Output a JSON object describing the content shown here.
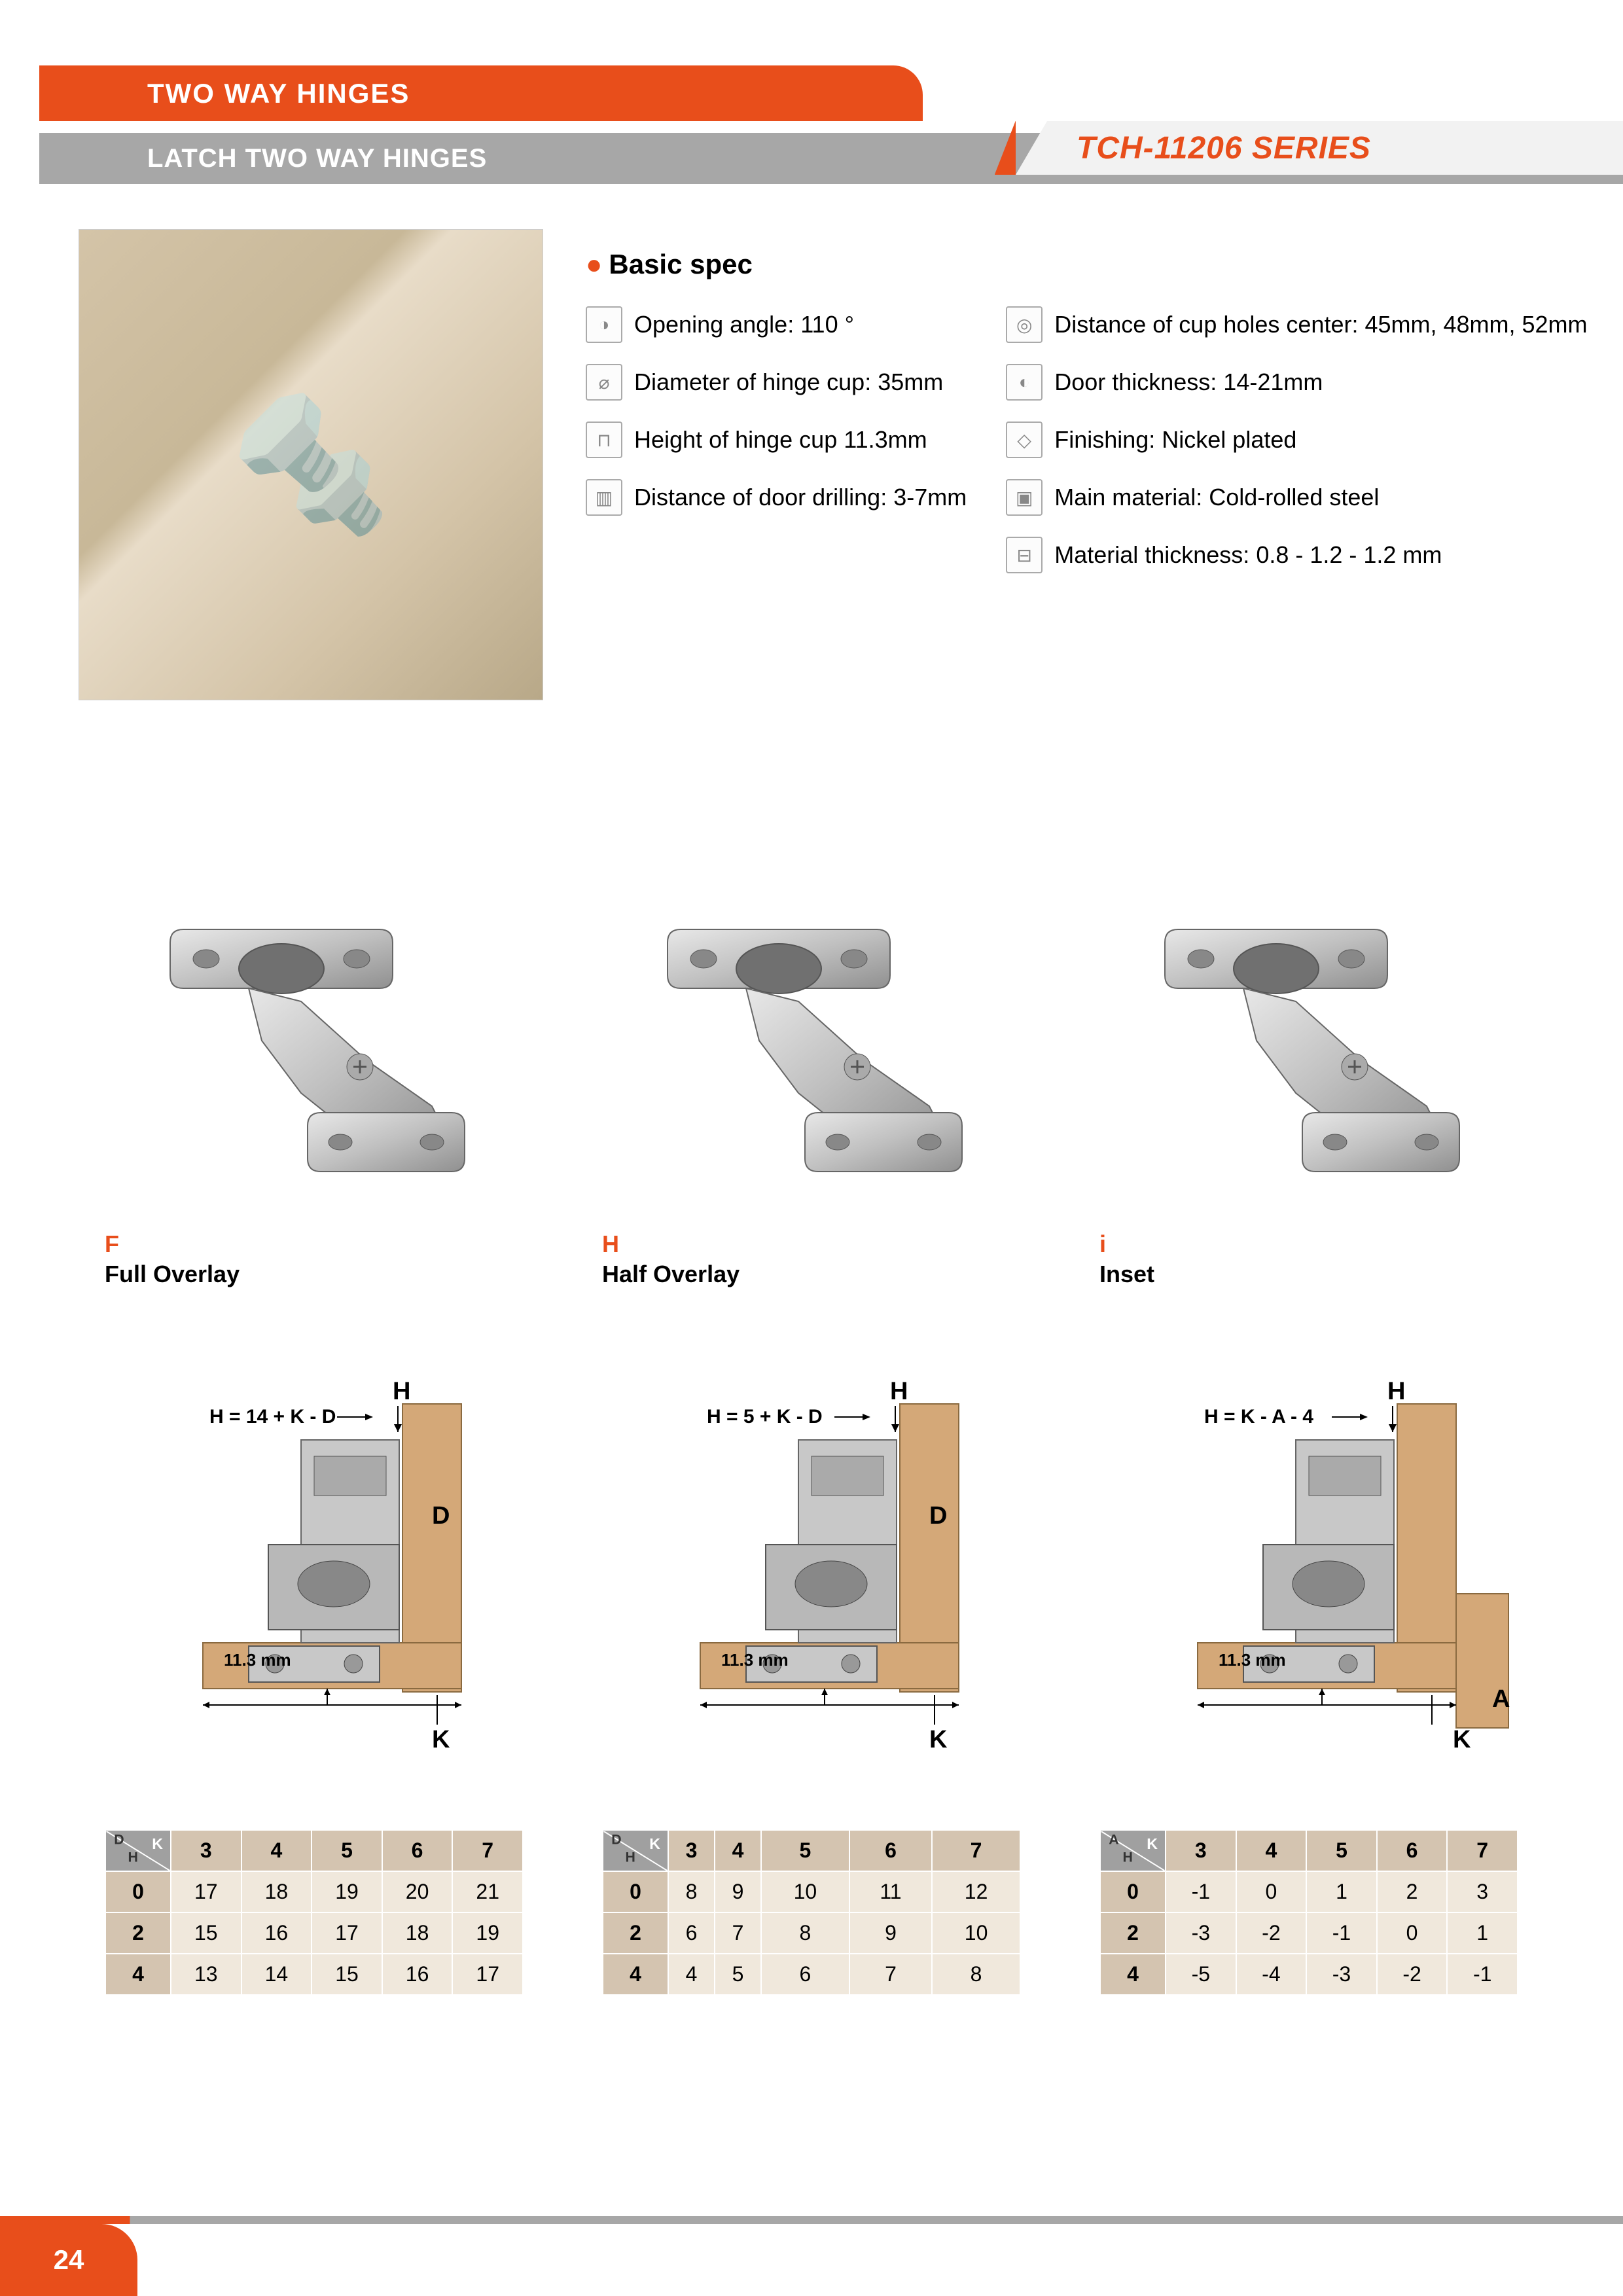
{
  "header": {
    "category": "TWO WAY HINGES",
    "subcategory": "LATCH TWO WAY HINGES",
    "series": "TCH-11206 SERIES"
  },
  "spec": {
    "title": "Basic spec",
    "left": [
      {
        "icon": "◑",
        "text": "Opening angle: 110 °"
      },
      {
        "icon": "⌀",
        "text": "Diameter of hinge cup: 35mm"
      },
      {
        "icon": "⊓",
        "text": "Height of hinge cup 11.3mm"
      },
      {
        "icon": "▥",
        "text": "Distance of door drilling: 3-7mm"
      }
    ],
    "right": [
      {
        "icon": "◎",
        "text": "Distance of cup holes center: 45mm, 48mm, 52mm"
      },
      {
        "icon": "◐",
        "text": "Door thickness: 14-21mm"
      },
      {
        "icon": "◇",
        "text": "Finishing: Nickel plated"
      },
      {
        "icon": "▣",
        "text": "Main material: Cold-rolled steel"
      },
      {
        "icon": "⊟",
        "text": "Material thickness: 0.8 - 1.2 - 1.2 mm"
      }
    ]
  },
  "variants": [
    {
      "letter": "F",
      "name": "Full Overlay",
      "formula": "H = 14 + K - D",
      "cup": "11.3 mm",
      "col_letters": [
        "D",
        "H",
        "K"
      ],
      "row_hdr": [
        "0",
        "2",
        "4"
      ],
      "col_hdr": [
        "3",
        "4",
        "5",
        "6",
        "7"
      ],
      "rows": [
        [
          "17",
          "18",
          "19",
          "20",
          "21"
        ],
        [
          "15",
          "16",
          "17",
          "18",
          "19"
        ],
        [
          "13",
          "14",
          "15",
          "16",
          "17"
        ]
      ],
      "mount": "full"
    },
    {
      "letter": "H",
      "name": "Half Overlay",
      "formula": "H = 5 + K - D",
      "cup": "11.3 mm",
      "col_letters": [
        "D",
        "H",
        "K"
      ],
      "row_hdr": [
        "0",
        "2",
        "4"
      ],
      "col_hdr": [
        "3",
        "4",
        "5",
        "6",
        "7"
      ],
      "rows": [
        [
          "8",
          "9",
          "10",
          "11",
          "12"
        ],
        [
          "6",
          "7",
          "8",
          "9",
          "10"
        ],
        [
          "4",
          "5",
          "6",
          "7",
          "8"
        ]
      ],
      "mount": "half"
    },
    {
      "letter": "i",
      "name": "Inset",
      "formula": "H = K - A - 4",
      "cup": "11.3 mm",
      "col_letters": [
        "A",
        "H",
        "K"
      ],
      "row_hdr": [
        "0",
        "2",
        "4"
      ],
      "col_hdr": [
        "3",
        "4",
        "5",
        "6",
        "7"
      ],
      "rows": [
        [
          "-1",
          "0",
          "1",
          "2",
          "3"
        ],
        [
          "-3",
          "-2",
          "-1",
          "0",
          "1"
        ],
        [
          "-5",
          "-4",
          "-3",
          "-2",
          "-1"
        ]
      ],
      "mount": "inset"
    }
  ],
  "style": {
    "orange": "#e84e1b",
    "gray": "#a7a7a7",
    "table_hdr": "#d4c4b0",
    "table_cell": "#f0e8dc"
  },
  "page": "24"
}
